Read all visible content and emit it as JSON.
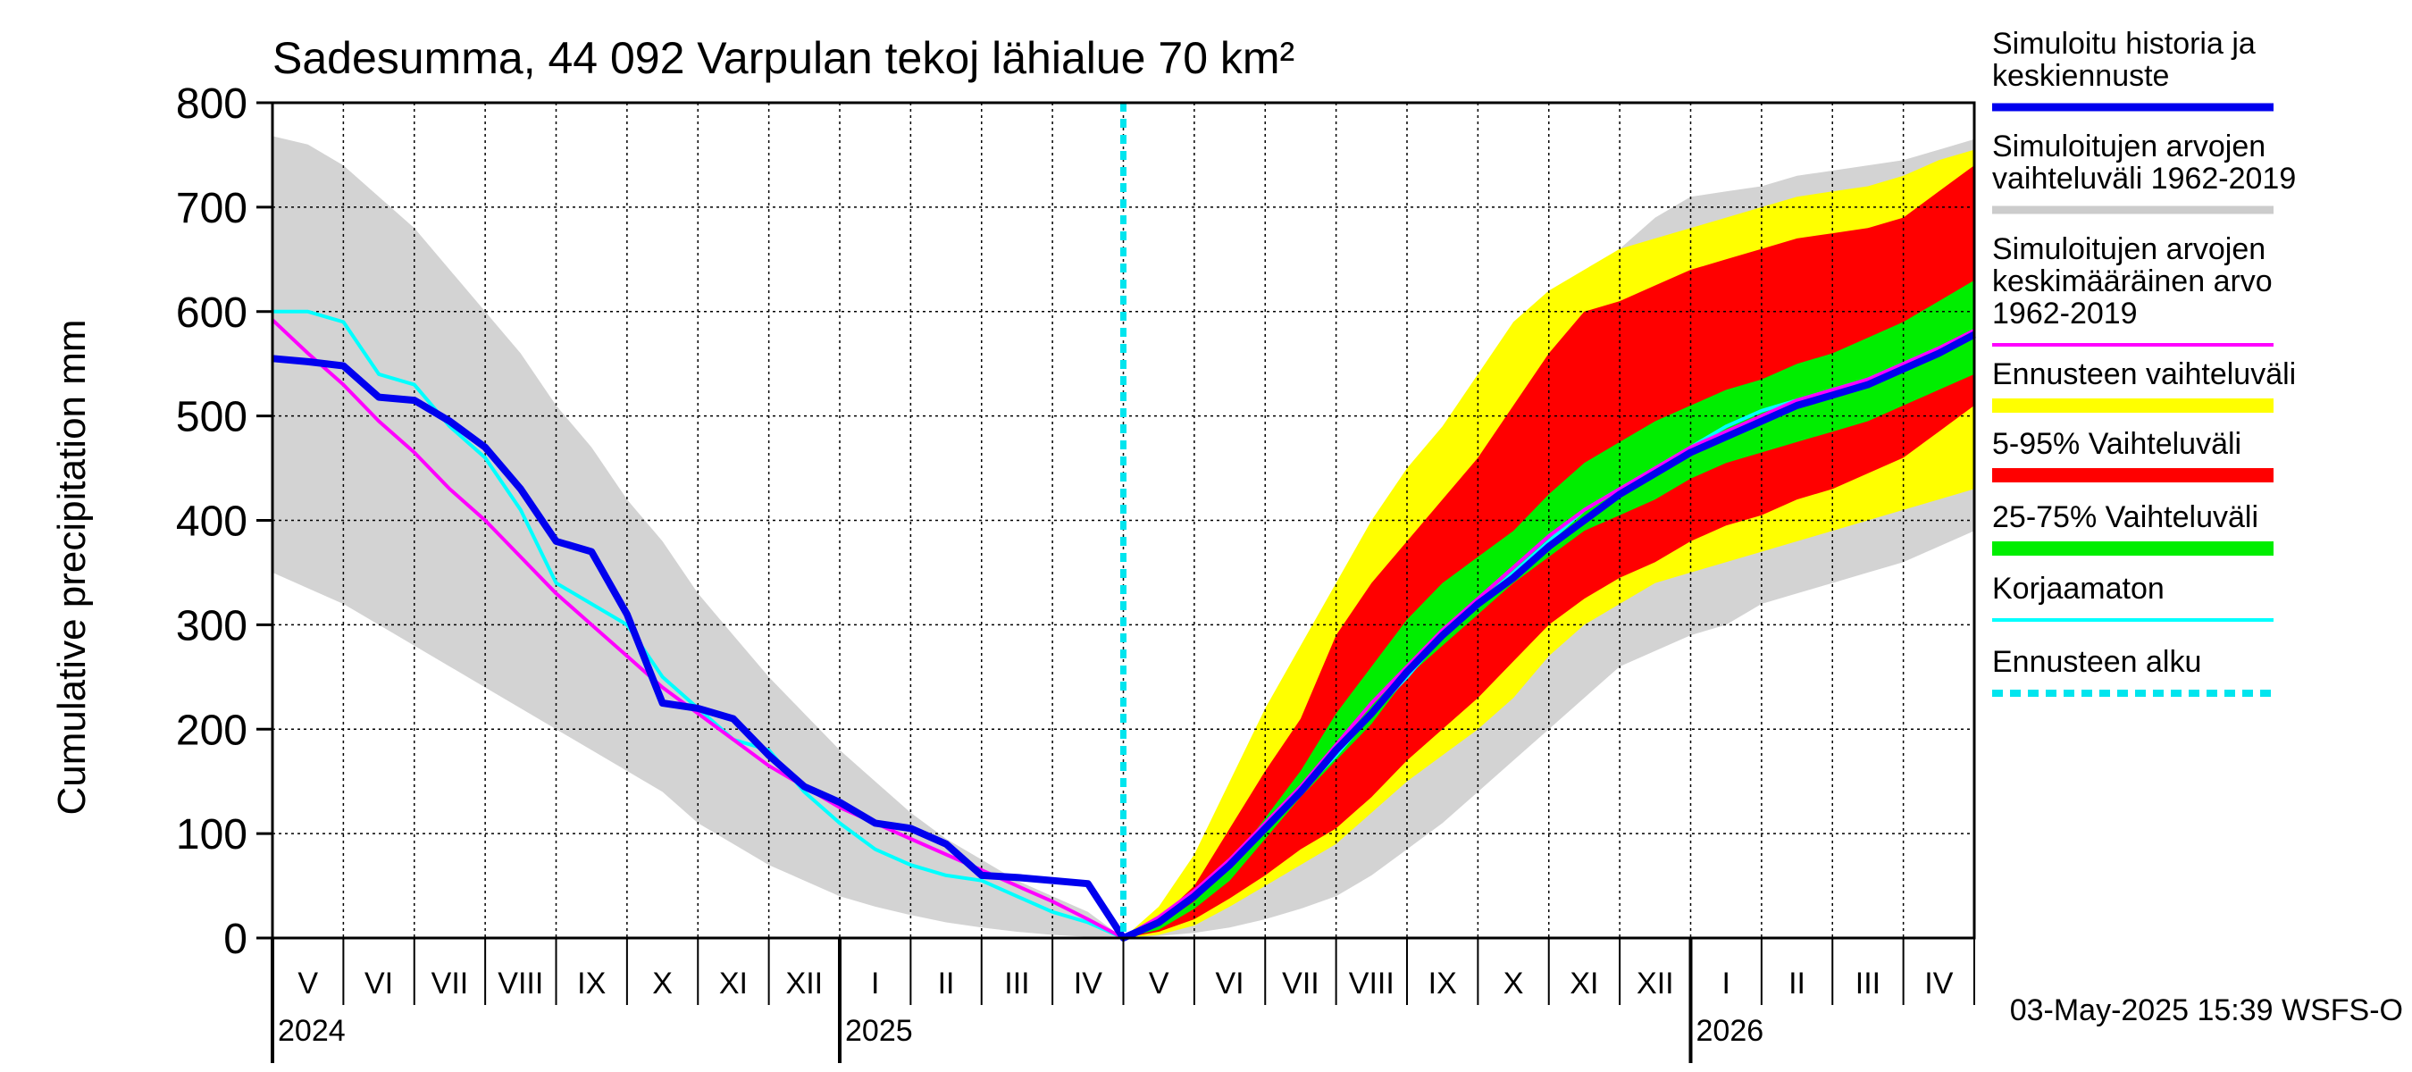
{
  "chart_data": {
    "type": "area",
    "title": "Sadesumma, 44 092 Varpulan tekoj lähialue 70 km²",
    "xlabel": "",
    "ylabel": "Cumulative precipitation   mm",
    "ylim": [
      0,
      800
    ],
    "yticks": [
      0,
      100,
      200,
      300,
      400,
      500,
      600,
      700,
      800
    ],
    "x_range_months": [
      0,
      24
    ],
    "forecast_start_month": 12,
    "month_labels": [
      "V",
      "VI",
      "VII",
      "VIII",
      "IX",
      "X",
      "XI",
      "XII",
      "I",
      "II",
      "III",
      "IV",
      "V",
      "VI",
      "VII",
      "VIII",
      "IX",
      "X",
      "XI",
      "XII",
      "I",
      "II",
      "III",
      "IV"
    ],
    "year_labels": [
      {
        "label": "2024",
        "month": 0
      },
      {
        "label": "2025",
        "month": 8
      },
      {
        "label": "2026",
        "month": 20
      }
    ],
    "footer": "03-May-2025 15:39 WSFS-O",
    "legend": [
      {
        "id": "hist",
        "label": [
          "Simuloitu historia ja",
          "keskiennuste"
        ],
        "color": "#0000ee",
        "style": "thick"
      },
      {
        "id": "range",
        "label": [
          "Simuloitujen arvojen",
          "vaihteluväli 1962-2019"
        ],
        "color": "#cccccc",
        "style": "thick"
      },
      {
        "id": "mean",
        "label": [
          "Simuloitujen arvojen",
          "keskimääräinen arvo",
          "   1962-2019"
        ],
        "color": "#ff00ff",
        "style": "thin"
      },
      {
        "id": "fc",
        "label": [
          "Ennusteen vaihteluväli"
        ],
        "color": "#ffff00",
        "style": "band"
      },
      {
        "id": "p595",
        "label": [
          "5-95% Vaihteluväli"
        ],
        "color": "#ff0000",
        "style": "band"
      },
      {
        "id": "p2575",
        "label": [
          "25-75% Vaihteluväli"
        ],
        "color": "#00ee00",
        "style": "band"
      },
      {
        "id": "raw",
        "label": [
          "Korjaamaton"
        ],
        "color": "#00ffff",
        "style": "thin"
      },
      {
        "id": "start",
        "label": [
          "Ennusteen alku"
        ],
        "color": "#00e5ee",
        "style": "dashed"
      }
    ],
    "series": [
      {
        "name": "Simuloitujen arvojen vaihteluväli 1962-2019 (max)",
        "x": [
          0,
          0.5,
          1,
          1.5,
          2,
          2.5,
          3,
          3.5,
          4,
          4.5,
          5,
          5.5,
          6,
          6.5,
          7,
          7.5,
          8,
          8.5,
          9,
          9.5,
          10,
          10.5,
          11,
          11.5,
          12,
          12.5,
          13,
          13.5,
          14,
          14.5,
          15,
          15.5,
          16,
          16.5,
          17,
          17.5,
          18,
          18.5,
          19,
          19.5,
          20,
          20.5,
          21,
          21.5,
          22,
          22.5,
          23,
          23.5,
          24
        ],
        "values": [
          768,
          760,
          740,
          710,
          680,
          640,
          600,
          560,
          510,
          470,
          420,
          380,
          330,
          290,
          250,
          215,
          180,
          150,
          120,
          95,
          75,
          55,
          40,
          25,
          0,
          25,
          55,
          100,
          160,
          210,
          260,
          310,
          360,
          410,
          450,
          500,
          560,
          610,
          660,
          690,
          710,
          715,
          720,
          730,
          735,
          740,
          745,
          755,
          765
        ]
      },
      {
        "name": "Simuloitujen arvojen vaihteluväli 1962-2019 (min)",
        "x": [
          0,
          0.5,
          1,
          1.5,
          2,
          2.5,
          3,
          3.5,
          4,
          4.5,
          5,
          5.5,
          6,
          6.5,
          7,
          7.5,
          8,
          8.5,
          9,
          9.5,
          10,
          10.5,
          11,
          11.5,
          12,
          12.5,
          13,
          13.5,
          14,
          14.5,
          15,
          15.5,
          16,
          16.5,
          17,
          17.5,
          18,
          18.5,
          19,
          19.5,
          20,
          20.5,
          21,
          21.5,
          22,
          22.5,
          23,
          23.5,
          24
        ],
        "values": [
          350,
          335,
          320,
          300,
          280,
          260,
          240,
          220,
          200,
          180,
          160,
          140,
          110,
          90,
          70,
          55,
          40,
          30,
          22,
          15,
          10,
          6,
          3,
          1,
          0,
          2,
          5,
          10,
          18,
          28,
          40,
          60,
          85,
          110,
          140,
          170,
          200,
          230,
          260,
          275,
          290,
          300,
          320,
          330,
          340,
          350,
          360,
          375,
          390
        ]
      },
      {
        "name": "Ennusteen vaihteluväli (max)",
        "x": [
          12,
          12.5,
          13,
          13.5,
          14,
          14.5,
          15,
          15.5,
          16,
          16.5,
          17,
          17.5,
          18,
          18.5,
          19,
          19.5,
          20,
          20.5,
          21,
          21.5,
          22,
          22.5,
          23,
          23.5,
          24
        ],
        "values": [
          0,
          30,
          80,
          150,
          220,
          280,
          340,
          400,
          450,
          490,
          540,
          590,
          620,
          640,
          660,
          670,
          680,
          690,
          700,
          710,
          715,
          720,
          730,
          745,
          755
        ]
      },
      {
        "name": "Ennusteen vaihteluväli (min)",
        "x": [
          12,
          12.5,
          13,
          13.5,
          14,
          14.5,
          15,
          15.5,
          16,
          16.5,
          17,
          17.5,
          18,
          18.5,
          19,
          19.5,
          20,
          20.5,
          21,
          21.5,
          22,
          22.5,
          23,
          23.5,
          24
        ],
        "values": [
          0,
          3,
          12,
          30,
          50,
          70,
          90,
          120,
          150,
          175,
          200,
          230,
          270,
          300,
          320,
          340,
          350,
          360,
          370,
          380,
          390,
          400,
          410,
          420,
          430
        ]
      },
      {
        "name": "5-95% Vaihteluväli (max)",
        "x": [
          12,
          12.5,
          13,
          13.5,
          14,
          14.5,
          15,
          15.5,
          16,
          16.5,
          17,
          17.5,
          18,
          18.5,
          19,
          19.5,
          20,
          20.5,
          21,
          21.5,
          22,
          22.5,
          23,
          23.5,
          24
        ],
        "values": [
          0,
          18,
          50,
          105,
          160,
          210,
          290,
          340,
          380,
          420,
          460,
          510,
          560,
          600,
          610,
          625,
          640,
          650,
          660,
          670,
          675,
          680,
          690,
          715,
          740
        ]
      },
      {
        "name": "5-95% Vaihteluväli (min)",
        "x": [
          12,
          12.5,
          13,
          13.5,
          14,
          14.5,
          15,
          15.5,
          16,
          16.5,
          17,
          17.5,
          18,
          18.5,
          19,
          19.5,
          20,
          20.5,
          21,
          21.5,
          22,
          22.5,
          23,
          23.5,
          24
        ],
        "values": [
          0,
          6,
          18,
          38,
          60,
          85,
          105,
          135,
          170,
          200,
          230,
          265,
          300,
          325,
          345,
          360,
          380,
          395,
          405,
          420,
          430,
          445,
          460,
          485,
          510
        ]
      },
      {
        "name": "25-75% Vaihteluväli (max)",
        "x": [
          12,
          12.5,
          13,
          13.5,
          14,
          14.5,
          15,
          15.5,
          16,
          16.5,
          17,
          17.5,
          18,
          18.5,
          19,
          19.5,
          20,
          20.5,
          21,
          21.5,
          22,
          22.5,
          23,
          23.5,
          24
        ],
        "values": [
          0,
          12,
          35,
          70,
          115,
          160,
          215,
          260,
          305,
          340,
          365,
          390,
          425,
          455,
          475,
          495,
          510,
          525,
          535,
          550,
          560,
          575,
          590,
          610,
          630
        ]
      },
      {
        "name": "25-75% Vaihteluväli (min)",
        "x": [
          12,
          12.5,
          13,
          13.5,
          14,
          14.5,
          15,
          15.5,
          16,
          16.5,
          17,
          17.5,
          18,
          18.5,
          19,
          19.5,
          20,
          20.5,
          21,
          21.5,
          22,
          22.5,
          23,
          23.5,
          24
        ],
        "values": [
          0,
          8,
          28,
          55,
          95,
          135,
          170,
          205,
          250,
          280,
          310,
          340,
          365,
          390,
          405,
          420,
          440,
          455,
          465,
          475,
          485,
          495,
          510,
          525,
          540
        ]
      },
      {
        "name": "Simuloitujen arvojen keskimääräinen arvo 1962-2019",
        "x": [
          0,
          0.5,
          1,
          1.5,
          2,
          2.5,
          3,
          3.5,
          4,
          4.5,
          5,
          5.5,
          6,
          6.5,
          7,
          7.5,
          8,
          8.5,
          9,
          9.5,
          10,
          10.5,
          11,
          11.5,
          12,
          12.5,
          13,
          13.5,
          14,
          14.5,
          15,
          15.5,
          16,
          16.5,
          17,
          17.5,
          18,
          18.5,
          19,
          19.5,
          20,
          20.5,
          21,
          21.5,
          22,
          22.5,
          23,
          23.5,
          24
        ],
        "values": [
          592,
          560,
          530,
          495,
          465,
          430,
          400,
          365,
          330,
          300,
          270,
          240,
          215,
          190,
          165,
          145,
          125,
          110,
          95,
          80,
          65,
          50,
          35,
          18,
          0,
          20,
          45,
          75,
          110,
          145,
          185,
          225,
          260,
          295,
          325,
          355,
          385,
          410,
          430,
          450,
          470,
          485,
          500,
          515,
          525,
          535,
          550,
          565,
          582
        ]
      },
      {
        "name": "Korjaamaton",
        "x": [
          0,
          0.5,
          1,
          1.5,
          2,
          2.5,
          3,
          3.5,
          4,
          4.5,
          5,
          5.5,
          6,
          6.5,
          7,
          7.5,
          8,
          8.5,
          9,
          9.5,
          10,
          10.5,
          11,
          11.5,
          12,
          12.5,
          13,
          13.5,
          14,
          14.5,
          15,
          15.5,
          16,
          16.5,
          17,
          17.5,
          18,
          18.5,
          19,
          19.5,
          20,
          20.5,
          21,
          21.5,
          22,
          22.5,
          23,
          23.5,
          24
        ],
        "values": [
          600,
          600,
          590,
          540,
          530,
          490,
          460,
          410,
          340,
          320,
          300,
          250,
          220,
          190,
          180,
          140,
          110,
          85,
          70,
          60,
          55,
          40,
          25,
          15,
          0,
          15,
          40,
          70,
          105,
          140,
          175,
          215,
          250,
          290,
          320,
          350,
          380,
          410,
          430,
          450,
          470,
          490,
          505,
          515,
          525,
          535,
          550,
          565,
          580
        ]
      },
      {
        "name": "Simuloitu historia ja keskiennuste",
        "x": [
          0,
          0.5,
          1,
          1.5,
          2,
          2.5,
          3,
          3.5,
          4,
          4.5,
          5,
          5.5,
          6,
          6.5,
          7,
          7.5,
          8,
          8.5,
          9,
          9.5,
          10,
          10.5,
          11,
          11.5,
          12,
          12.5,
          13,
          13.5,
          14,
          14.5,
          15,
          15.5,
          16,
          16.5,
          17,
          17.5,
          18,
          18.5,
          19,
          19.5,
          20,
          20.5,
          21,
          21.5,
          22,
          22.5,
          23,
          23.5,
          24
        ],
        "values": [
          555,
          552,
          548,
          518,
          515,
          495,
          470,
          430,
          380,
          370,
          310,
          225,
          220,
          210,
          175,
          145,
          130,
          110,
          105,
          90,
          60,
          58,
          55,
          52,
          0,
          15,
          40,
          70,
          105,
          140,
          180,
          215,
          255,
          290,
          320,
          345,
          375,
          400,
          425,
          445,
          465,
          480,
          495,
          510,
          520,
          530,
          545,
          560,
          578
        ]
      }
    ]
  }
}
